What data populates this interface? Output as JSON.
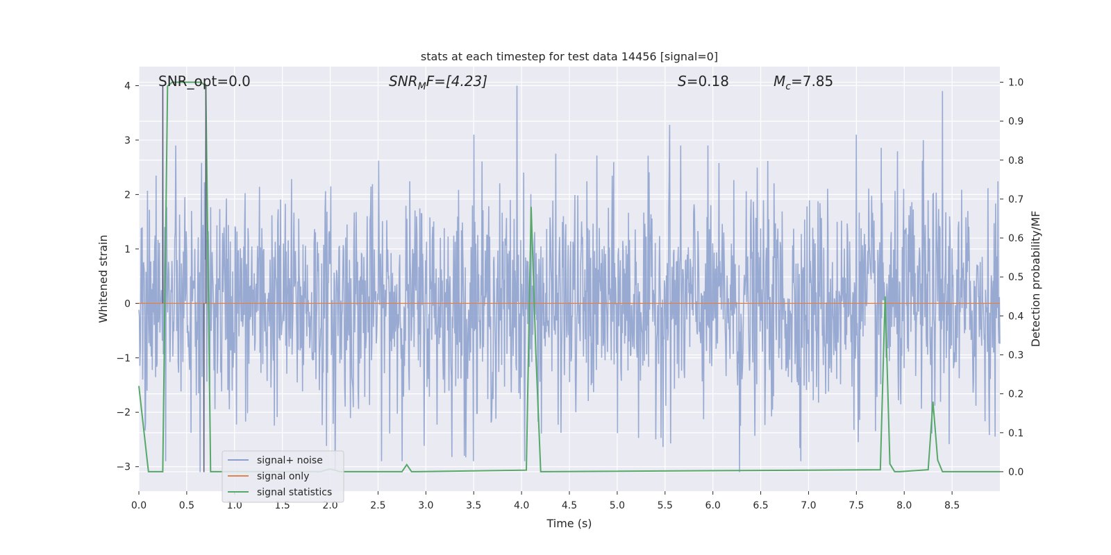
{
  "chart_data": {
    "type": "line",
    "title": "stats at each timestep for test data 14456 [signal=0]",
    "xlabel": "Time (s)",
    "ylabel_left": "Whitened strain",
    "ylabel_right": "Detection probability/MF",
    "xlim": [
      0,
      9
    ],
    "ylim_left": [
      -3.45,
      4.35
    ],
    "ylim_right": [
      -0.05,
      1.04
    ],
    "x_ticks": [
      0.0,
      0.5,
      1.0,
      1.5,
      2.0,
      2.5,
      3.0,
      3.5,
      4.0,
      4.5,
      5.0,
      5.5,
      6.0,
      6.5,
      7.0,
      7.5,
      8.0,
      8.5
    ],
    "x_tick_labels": [
      "0.0",
      "0.5",
      "1.0",
      "1.5",
      "2.0",
      "2.5",
      "3.0",
      "3.5",
      "4.0",
      "4.5",
      "5.0",
      "5.5",
      "6.0",
      "6.5",
      "7.0",
      "7.5",
      "8.0",
      "8.5"
    ],
    "y_left_ticks": [
      4,
      3,
      2,
      1,
      0,
      -1,
      -2,
      -3
    ],
    "y_left_tick_labels": [
      "4",
      "3",
      "2",
      "1",
      "0",
      "−1",
      "−2",
      "−3"
    ],
    "y_right_ticks": [
      1.0,
      0.9,
      0.8,
      0.7,
      0.6,
      0.5,
      0.4,
      0.3,
      0.2,
      0.1,
      0.0
    ],
    "y_right_tick_labels": [
      "1.0",
      "0.9",
      "0.8",
      "0.7",
      "0.6",
      "0.5",
      "0.4",
      "0.3",
      "0.2",
      "0.1",
      "0.0"
    ],
    "annotations": {
      "snr_opt": "SNR_opt=0.0",
      "snr_mf_base": "SNR",
      "snr_mf_sub": "M",
      "snr_mf_rest": "F=[4.23]",
      "s_var": "S",
      "s_val": "=0.18",
      "mc_var": "M",
      "mc_sub": "c",
      "mc_val": "=7.85"
    },
    "legend": {
      "position": "lower-left",
      "entries": [
        {
          "label": "signal+ noise",
          "color": "#8a9fcc"
        },
        {
          "label": "signal only",
          "color": "#dd8452"
        },
        {
          "label": "signal statistics",
          "color": "#55a868"
        }
      ]
    },
    "series": [
      {
        "name": "signal+ noise",
        "axis": "left",
        "style": "noise-envelope",
        "color": "#8a9fcc",
        "sample_count": 1800,
        "sigma": 1.0,
        "notable_peaks": [
          {
            "x": 0.25,
            "y": 4.0
          },
          {
            "x": 0.7,
            "y": 4.0
          },
          {
            "x": 3.95,
            "y": 4.0
          },
          {
            "x": 8.4,
            "y": 3.9
          },
          {
            "x": 5.55,
            "y": 3.28
          },
          {
            "x": 7.5,
            "y": 3.1
          },
          {
            "x": 3.5,
            "y": 3.1
          },
          {
            "x": 8.2,
            "y": 3.0
          },
          {
            "x": 0.68,
            "y": -3.1
          },
          {
            "x": 0.64,
            "y": -3.1
          },
          {
            "x": 6.28,
            "y": -3.1
          },
          {
            "x": 2.05,
            "y": -3.05
          },
          {
            "x": 3.4,
            "y": -2.8
          }
        ]
      },
      {
        "name": "signal only",
        "axis": "left",
        "color": "#dd8452",
        "x": [
          0,
          9
        ],
        "y": [
          0,
          0
        ]
      },
      {
        "name": "signal statistics",
        "axis": "right",
        "color": "#55a868",
        "x": [
          0.0,
          0.05,
          0.1,
          0.15,
          0.2,
          0.25,
          0.3,
          0.35,
          0.45,
          0.55,
          0.65,
          0.7,
          0.75,
          0.8,
          0.9,
          1.5,
          1.9,
          1.95,
          2.0,
          2.05,
          2.1,
          2.75,
          2.8,
          2.85,
          2.9,
          4.05,
          4.1,
          4.15,
          4.2,
          4.25,
          7.75,
          7.8,
          7.85,
          7.9,
          7.95,
          8.25,
          8.3,
          8.35,
          8.4,
          8.45,
          9.0
        ],
        "y": [
          0.22,
          0.11,
          0.0,
          0.0,
          0.0,
          0.0,
          0.99,
          1.0,
          1.0,
          1.0,
          1.0,
          0.99,
          0.0,
          0.0,
          0.0,
          0.0,
          0.0,
          0.004,
          0.007,
          0.004,
          0.0,
          0.0,
          0.018,
          0.0,
          0.0,
          0.004,
          0.68,
          0.3,
          0.0,
          0.0,
          0.005,
          0.45,
          0.02,
          0.0,
          0.0,
          0.005,
          0.18,
          0.03,
          0.0,
          0.0,
          0.0
        ]
      }
    ]
  }
}
